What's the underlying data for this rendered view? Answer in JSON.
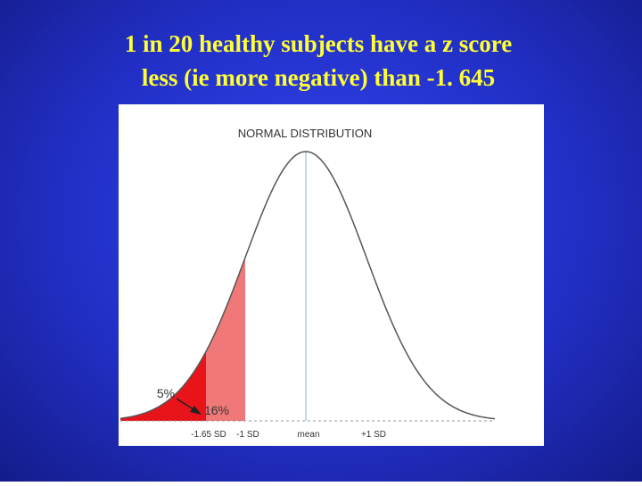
{
  "slide": {
    "title_lines": [
      "1 in 20 healthy subjects have a z score",
      "less (ie more negative) than -1. 645"
    ]
  },
  "figure": {
    "title": "NORMAL DISTRIBUTION",
    "area_labels": [
      "5%",
      "16%"
    ],
    "axis_labels": [
      "-1.65 SD",
      "-1 SD",
      "mean",
      "+1 SD"
    ]
  }
}
